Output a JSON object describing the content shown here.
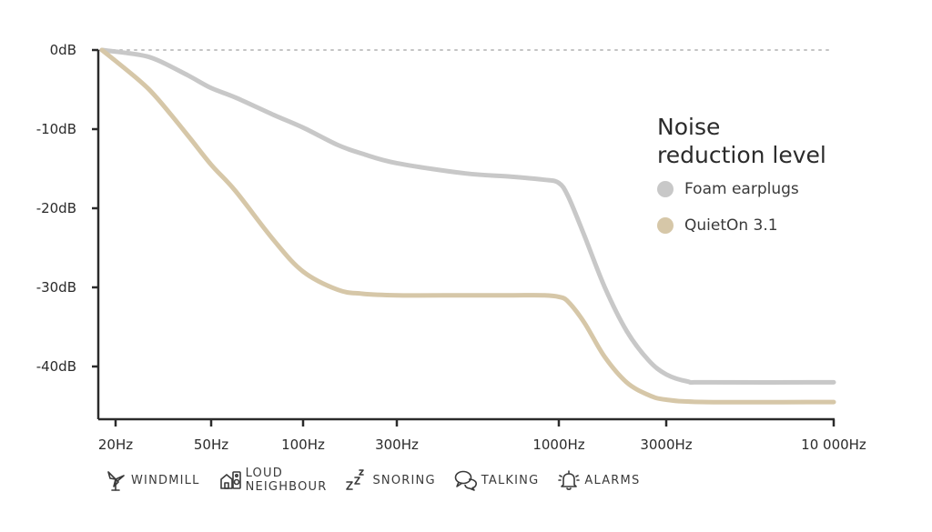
{
  "chart_data": {
    "type": "line",
    "title": "",
    "xlabel": "",
    "ylabel": "",
    "x_scale": "log",
    "x_ticks": [
      {
        "value": 20,
        "label": "20Hz"
      },
      {
        "value": 50,
        "label": "50Hz"
      },
      {
        "value": 100,
        "label": "100Hz"
      },
      {
        "value": 300,
        "label": "300Hz"
      },
      {
        "value": 1000,
        "label": "1000Hz"
      },
      {
        "value": 3000,
        "label": "3000Hz"
      },
      {
        "value": 10000,
        "label": "10 000Hz"
      }
    ],
    "y_ticks": [
      {
        "value": 0,
        "label": "0dB"
      },
      {
        "value": -10,
        "label": "-10dB"
      },
      {
        "value": -20,
        "label": "-20dB"
      },
      {
        "value": -30,
        "label": "-30dB"
      },
      {
        "value": -40,
        "label": "-40dB"
      }
    ],
    "ylim": [
      -46,
      0
    ],
    "grid": false,
    "reference_line": {
      "y": 0,
      "style": "dotted"
    },
    "legend": {
      "title": "Noise\nreduction level",
      "placement": "right"
    },
    "series": [
      {
        "name": "Foam earplugs",
        "color": "#c8c8c8",
        "points": [
          [
            18,
            0
          ],
          [
            25,
            -0.6
          ],
          [
            30,
            -1.3
          ],
          [
            40,
            -3.2
          ],
          [
            50,
            -4.8
          ],
          [
            60,
            -6.0
          ],
          [
            80,
            -8.2
          ],
          [
            100,
            -9.8
          ],
          [
            150,
            -12.0
          ],
          [
            200,
            -13.1
          ],
          [
            300,
            -14.3
          ],
          [
            500,
            -15.6
          ],
          [
            700,
            -16.0
          ],
          [
            900,
            -16.4
          ],
          [
            1000,
            -16.8
          ],
          [
            1100,
            -18.5
          ],
          [
            1300,
            -23.5
          ],
          [
            1600,
            -30.0
          ],
          [
            2000,
            -35.5
          ],
          [
            2500,
            -39.2
          ],
          [
            3000,
            -41.0
          ],
          [
            3500,
            -41.9
          ],
          [
            4000,
            -42.0
          ],
          [
            10000,
            -42.0
          ]
        ]
      },
      {
        "name": "QuietOn 3.1",
        "color": "#d6c7a8",
        "points": [
          [
            18,
            0
          ],
          [
            25,
            -3.8
          ],
          [
            30,
            -6.2
          ],
          [
            40,
            -10.8
          ],
          [
            50,
            -14.5
          ],
          [
            60,
            -17.8
          ],
          [
            80,
            -24.0
          ],
          [
            100,
            -28.0
          ],
          [
            150,
            -30.3
          ],
          [
            200,
            -30.8
          ],
          [
            300,
            -31.0
          ],
          [
            500,
            -31.0
          ],
          [
            700,
            -31.0
          ],
          [
            900,
            -31.0
          ],
          [
            1000,
            -31.2
          ],
          [
            1100,
            -31.8
          ],
          [
            1300,
            -34.5
          ],
          [
            1600,
            -38.8
          ],
          [
            2000,
            -42.0
          ],
          [
            2500,
            -43.6
          ],
          [
            3000,
            -44.2
          ],
          [
            4000,
            -44.5
          ],
          [
            10000,
            -44.5
          ]
        ]
      }
    ]
  },
  "categories": [
    {
      "icon": "windmill-icon",
      "label": "WINDMILL"
    },
    {
      "icon": "loud-neighbour-icon",
      "label": "LOUD\nNEIGHBOUR"
    },
    {
      "icon": "snoring-icon",
      "label": "SNORING"
    },
    {
      "icon": "talking-icon",
      "label": "TALKING"
    },
    {
      "icon": "alarm-bell-icon",
      "label": "ALARMS"
    }
  ]
}
